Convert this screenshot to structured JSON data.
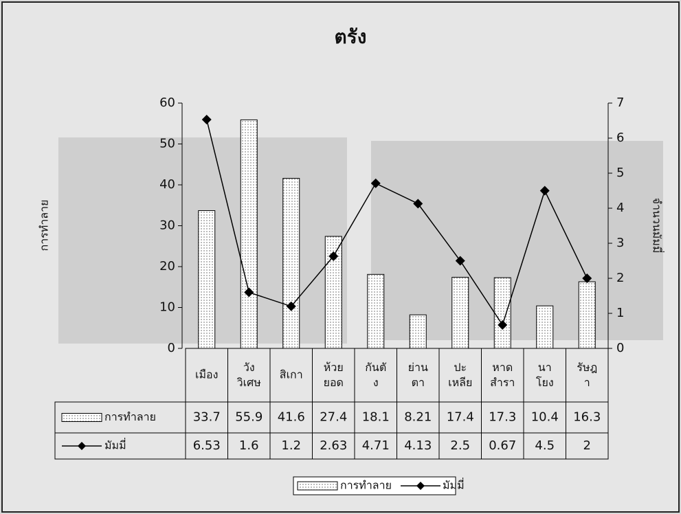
{
  "chart_data": {
    "type": "bar-line",
    "title": "ตรัง",
    "y_label": "การทำลาย",
    "y2_label": "จำนวนมัมมี่",
    "categories": [
      "เมือง",
      "วัง\nวิเศษ",
      "สิเกา",
      "ห้วย\nยอด",
      "กันตั\nง",
      "ย่าน\nตา",
      "ปะ\nเหลีย",
      "หาด\nสำรา",
      "นา\nโยง",
      "รัษฎ\nา"
    ],
    "series": [
      {
        "name": "การทำลาย",
        "type": "bar",
        "color": "#ffffff",
        "values": [
          33.7,
          55.9,
          41.6,
          27.4,
          18.1,
          8.21,
          17.4,
          17.3,
          10.4,
          16.3
        ]
      },
      {
        "name": "มัมมี่",
        "type": "line",
        "axis": "y2",
        "color": "#000000",
        "values": [
          6.53,
          1.6,
          1.2,
          2.63,
          4.71,
          4.13,
          2.5,
          0.67,
          4.5,
          2
        ]
      }
    ],
    "ylim": [
      0,
      60
    ],
    "yticks": [
      0,
      10,
      20,
      30,
      40,
      50,
      60
    ],
    "y2lim": [
      0,
      7
    ],
    "y2ticks": [
      0,
      1,
      2,
      3,
      4,
      5,
      6,
      7
    ],
    "legend": "bottom"
  }
}
